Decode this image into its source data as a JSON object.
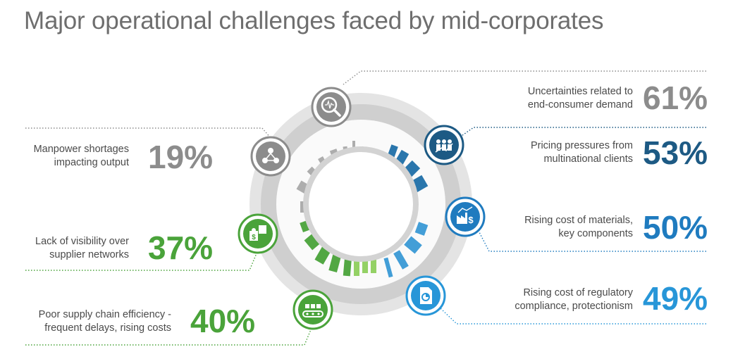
{
  "title": "Major operational challenges faced by mid-corporates",
  "colors": {
    "gray": "#8c8c8c",
    "green": "#4aa33a",
    "darkblue": "#1d5a84",
    "blue": "#1f7bbf",
    "lightblue": "#2796d8"
  },
  "challenges": [
    {
      "label_line1": "Uncertainties related to",
      "label_line2": "end-consumer demand",
      "value": "61%",
      "color": "#8c8c8c",
      "icon": "search-chart-icon"
    },
    {
      "label_line1": "Pricing pressures from",
      "label_line2": "multinational clients",
      "value": "53%",
      "color": "#1d5a84",
      "icon": "team-growth-icon"
    },
    {
      "label_line1": "Rising cost of materials,",
      "label_line2": "key components",
      "value": "50%",
      "color": "#1f7bbf",
      "icon": "factory-cost-icon"
    },
    {
      "label_line1": "Rising cost of regulatory",
      "label_line2": "compliance, protectionism",
      "value": "49%",
      "color": "#2796d8",
      "icon": "document-icon"
    },
    {
      "label_line1": "Manpower shortages",
      "label_line2": "impacting output",
      "value": "19%",
      "color": "#8c8c8c",
      "icon": "people-network-icon"
    },
    {
      "label_line1": "Lack of visibility over",
      "label_line2": "supplier networks",
      "value": "37%",
      "color": "#4aa33a",
      "icon": "puzzle-icon"
    },
    {
      "label_line1": "Poor supply chain efficiency -",
      "label_line2": "frequent delays, rising costs",
      "value": "40%",
      "color": "#4aa33a",
      "icon": "conveyor-icon"
    }
  ]
}
